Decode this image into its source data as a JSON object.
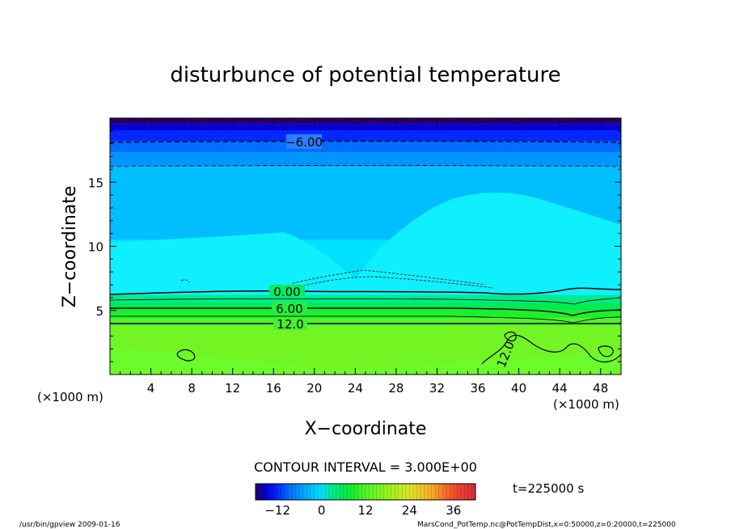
{
  "chart_data": {
    "type": "contour",
    "title": "disturbunce of potential temperature",
    "xlabel": "X−coordinate",
    "ylabel": "Z−coordinate",
    "x_unit_left": "(×1000 m)",
    "x_unit_right": "(×1000 m)",
    "xlim": [
      0,
      50
    ],
    "ylim": [
      0,
      20
    ],
    "xticks": [
      4,
      8,
      12,
      16,
      20,
      24,
      28,
      32,
      36,
      40,
      44,
      48
    ],
    "yticks": [
      5,
      10,
      15
    ],
    "contour_labels": [
      "−6.00",
      "0.00",
      "6.00",
      "12.0",
      "12.0"
    ],
    "contour_interval_text": "CONTOUR INTERVAL = 3.000E+00",
    "time_text": "t=225000 s",
    "colorbar": {
      "ticks": [
        "−12",
        "0",
        "12",
        "24",
        "36"
      ],
      "range": [
        -18,
        42
      ]
    },
    "field_levels": [
      {
        "z_top": 20.0,
        "value": -18
      },
      {
        "z_top": 19.5,
        "value": -15
      },
      {
        "z_top": 19.0,
        "value": -12
      },
      {
        "z_top": 18.2,
        "value": -9
      },
      {
        "z_top": 17.3,
        "value": -6
      },
      {
        "z_top": 16.2,
        "value": -3
      },
      {
        "z_top": 10.5,
        "value": 0
      },
      {
        "z_top": 6.2,
        "value": 3
      },
      {
        "z_top": 5.6,
        "value": 6
      },
      {
        "z_top": 5.0,
        "value": 9
      },
      {
        "z_top": 4.4,
        "value": 12
      },
      {
        "z_top": 3.8,
        "value": 15
      }
    ]
  },
  "footer": {
    "left": "/usr/bin/gpview   2009-01-16",
    "right": "MarsCond_PotTemp.nc@PotTempDist,x=0:50000,z=0:20000,t=225000"
  }
}
